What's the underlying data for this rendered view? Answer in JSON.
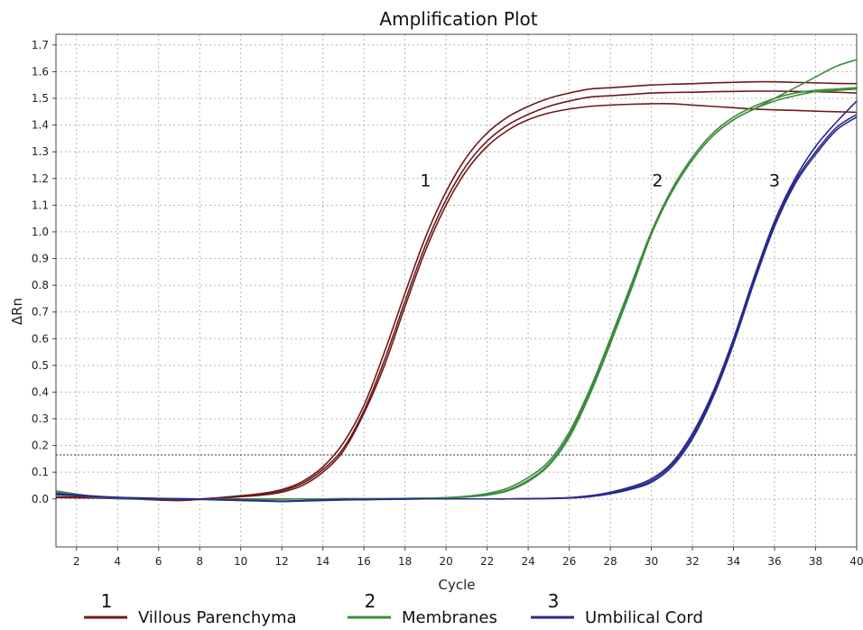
{
  "chart_data": {
    "type": "line",
    "title": "Amplification Plot",
    "xlabel": "Cycle",
    "ylabel": "ΔRn",
    "xlim": [
      1,
      40
    ],
    "ylim": [
      -0.18,
      1.74
    ],
    "x_ticks": [
      2,
      4,
      6,
      8,
      10,
      12,
      14,
      16,
      18,
      20,
      22,
      24,
      26,
      28,
      30,
      32,
      34,
      36,
      38,
      40
    ],
    "y_ticks": [
      0.0,
      0.1,
      0.2,
      0.3,
      0.4,
      0.5,
      0.6,
      0.7,
      0.8,
      0.9,
      1.0,
      1.1,
      1.2,
      1.3,
      1.4,
      1.5,
      1.6,
      1.7
    ],
    "y_tick_labels": [
      "0.0",
      "0.1",
      "0.2",
      "0.3",
      "0.4",
      "0.5",
      "0.6",
      "0.7",
      "0.8",
      "0.9",
      "1.0",
      "1.1",
      "1.2",
      "1.3",
      "1.4",
      "1.5",
      "1.6",
      "1.7"
    ],
    "grid": true,
    "threshold": 0.165,
    "legend_position": "bottom",
    "colors": {
      "villous": "#6e1a1a",
      "membranes": "#3c8c3c",
      "umbilical": "#2a2a8c",
      "threshold": "#333333",
      "grid": "#b5b5b5"
    },
    "series": [
      {
        "name": "Villous Parenchyma",
        "group": "1",
        "color": "#6e1a1a",
        "x": [
          1,
          2,
          3,
          4,
          5,
          6,
          7,
          8,
          9,
          10,
          11,
          12,
          13,
          14,
          15,
          16,
          17,
          18,
          19,
          20,
          21,
          22,
          23,
          24,
          25,
          26,
          27,
          28,
          29,
          30,
          31,
          32,
          33,
          34,
          35,
          36,
          37,
          38,
          39,
          40
        ],
        "y": [
          0.008,
          0.007,
          0.005,
          0.003,
          0.001,
          -0.002,
          -0.004,
          0.0,
          0.005,
          0.012,
          0.02,
          0.035,
          0.065,
          0.12,
          0.21,
          0.35,
          0.55,
          0.77,
          0.98,
          1.15,
          1.28,
          1.37,
          1.43,
          1.47,
          1.5,
          1.52,
          1.535,
          1.54,
          1.545,
          1.55,
          1.553,
          1.555,
          1.558,
          1.56,
          1.562,
          1.562,
          1.56,
          1.558,
          1.556,
          1.555
        ]
      },
      {
        "name": "Villous Parenchyma",
        "group": "1",
        "color": "#6e1a1a",
        "x": [
          1,
          2,
          3,
          4,
          5,
          6,
          7,
          8,
          9,
          10,
          11,
          12,
          13,
          14,
          15,
          16,
          17,
          18,
          19,
          20,
          21,
          22,
          23,
          24,
          25,
          26,
          27,
          28,
          29,
          30,
          31,
          32,
          33,
          34,
          35,
          36,
          37,
          38,
          39,
          40
        ],
        "y": [
          0.006,
          0.005,
          0.004,
          0.002,
          0.0,
          -0.003,
          -0.005,
          -0.001,
          0.004,
          0.01,
          0.017,
          0.03,
          0.058,
          0.11,
          0.19,
          0.33,
          0.52,
          0.74,
          0.95,
          1.12,
          1.25,
          1.34,
          1.4,
          1.44,
          1.47,
          1.49,
          1.505,
          1.51,
          1.515,
          1.52,
          1.522,
          1.523,
          1.525,
          1.526,
          1.527,
          1.527,
          1.526,
          1.525,
          1.523,
          1.52
        ]
      },
      {
        "name": "Villous Parenchyma",
        "group": "1",
        "color": "#6e1a1a",
        "x": [
          1,
          2,
          3,
          4,
          5,
          6,
          7,
          8,
          9,
          10,
          11,
          12,
          13,
          14,
          15,
          16,
          17,
          18,
          19,
          20,
          21,
          22,
          23,
          24,
          25,
          26,
          27,
          28,
          29,
          30,
          31,
          32,
          33,
          34,
          35,
          36,
          37,
          38,
          39,
          40
        ],
        "y": [
          0.005,
          0.004,
          0.003,
          0.001,
          -0.001,
          -0.004,
          -0.006,
          -0.002,
          0.003,
          0.008,
          0.014,
          0.025,
          0.05,
          0.1,
          0.18,
          0.32,
          0.5,
          0.72,
          0.93,
          1.1,
          1.23,
          1.32,
          1.38,
          1.42,
          1.445,
          1.46,
          1.47,
          1.475,
          1.478,
          1.48,
          1.48,
          1.475,
          1.47,
          1.465,
          1.46,
          1.457,
          1.455,
          1.452,
          1.45,
          1.448
        ]
      },
      {
        "name": "Membranes",
        "group": "2",
        "color": "#3c8c3c",
        "x": [
          1,
          2,
          3,
          4,
          5,
          6,
          7,
          8,
          9,
          10,
          11,
          12,
          13,
          14,
          15,
          16,
          17,
          18,
          19,
          20,
          21,
          22,
          23,
          24,
          25,
          26,
          27,
          28,
          29,
          30,
          31,
          32,
          33,
          34,
          35,
          36,
          37,
          38,
          39,
          40
        ],
        "y": [
          0.03,
          0.018,
          0.008,
          0.004,
          0.002,
          0.001,
          0.0,
          0.0,
          0.0,
          0.0,
          0.0,
          0.0,
          0.0,
          0.0,
          0.001,
          0.001,
          0.001,
          0.002,
          0.003,
          0.005,
          0.01,
          0.02,
          0.04,
          0.08,
          0.14,
          0.25,
          0.41,
          0.6,
          0.8,
          1.0,
          1.15,
          1.27,
          1.36,
          1.42,
          1.46,
          1.5,
          1.54,
          1.58,
          1.62,
          1.645
        ]
      },
      {
        "name": "Membranes",
        "group": "2",
        "color": "#3c8c3c",
        "x": [
          1,
          2,
          3,
          4,
          5,
          6,
          7,
          8,
          9,
          10,
          11,
          12,
          13,
          14,
          15,
          16,
          17,
          18,
          19,
          20,
          21,
          22,
          23,
          24,
          25,
          26,
          27,
          28,
          29,
          30,
          31,
          32,
          33,
          34,
          35,
          36,
          37,
          38,
          39,
          40
        ],
        "y": [
          0.025,
          0.015,
          0.007,
          0.003,
          0.001,
          0.0,
          0.0,
          0.0,
          0.0,
          0.0,
          0.0,
          0.0,
          0.0,
          -0.001,
          0.0,
          0.0,
          0.0,
          0.001,
          0.002,
          0.004,
          0.008,
          0.016,
          0.033,
          0.07,
          0.13,
          0.24,
          0.4,
          0.59,
          0.79,
          1.0,
          1.16,
          1.28,
          1.37,
          1.43,
          1.47,
          1.5,
          1.52,
          1.53,
          1.535,
          1.54
        ]
      },
      {
        "name": "Membranes",
        "group": "2",
        "color": "#3c8c3c",
        "x": [
          1,
          2,
          3,
          4,
          5,
          6,
          7,
          8,
          9,
          10,
          11,
          12,
          13,
          14,
          15,
          16,
          17,
          18,
          19,
          20,
          21,
          22,
          23,
          24,
          25,
          26,
          27,
          28,
          29,
          30,
          31,
          32,
          33,
          34,
          35,
          36,
          37,
          38,
          39,
          40
        ],
        "y": [
          0.022,
          0.013,
          0.006,
          0.002,
          0.0,
          0.0,
          -0.001,
          0.0,
          0.0,
          0.0,
          -0.001,
          -0.001,
          0.0,
          -0.001,
          0.0,
          0.0,
          0.0,
          0.001,
          0.002,
          0.003,
          0.007,
          0.014,
          0.03,
          0.065,
          0.125,
          0.23,
          0.39,
          0.58,
          0.78,
          0.99,
          1.15,
          1.27,
          1.36,
          1.42,
          1.46,
          1.49,
          1.51,
          1.525,
          1.53,
          1.535
        ]
      },
      {
        "name": "Umbilical Cord",
        "group": "3",
        "color": "#2a2a8c",
        "x": [
          1,
          2,
          3,
          4,
          5,
          6,
          7,
          8,
          9,
          10,
          11,
          12,
          13,
          14,
          15,
          16,
          17,
          18,
          19,
          20,
          21,
          22,
          23,
          24,
          25,
          26,
          27,
          28,
          29,
          30,
          31,
          32,
          33,
          34,
          35,
          36,
          37,
          38,
          39,
          40
        ],
        "y": [
          0.02,
          0.015,
          0.01,
          0.006,
          0.004,
          0.002,
          0.001,
          0.0,
          -0.002,
          -0.004,
          -0.006,
          -0.008,
          -0.006,
          -0.004,
          -0.002,
          -0.002,
          -0.001,
          0.0,
          0.0,
          0.0,
          0.0,
          0.0,
          0.0,
          0.001,
          0.002,
          0.005,
          0.012,
          0.025,
          0.045,
          0.075,
          0.135,
          0.245,
          0.4,
          0.6,
          0.83,
          1.04,
          1.2,
          1.32,
          1.41,
          1.49
        ]
      },
      {
        "name": "Umbilical Cord",
        "group": "3",
        "color": "#2a2a8c",
        "x": [
          1,
          2,
          3,
          4,
          5,
          6,
          7,
          8,
          9,
          10,
          11,
          12,
          13,
          14,
          15,
          16,
          17,
          18,
          19,
          20,
          21,
          22,
          23,
          24,
          25,
          26,
          27,
          28,
          29,
          30,
          31,
          32,
          33,
          34,
          35,
          36,
          37,
          38,
          39,
          40
        ],
        "y": [
          0.018,
          0.013,
          0.009,
          0.005,
          0.003,
          0.001,
          0.0,
          -0.001,
          -0.003,
          -0.005,
          -0.007,
          -0.009,
          -0.007,
          -0.005,
          -0.003,
          -0.002,
          -0.001,
          0.0,
          0.0,
          0.0,
          0.0,
          0.0,
          0.0,
          0.001,
          0.002,
          0.004,
          0.01,
          0.022,
          0.04,
          0.068,
          0.128,
          0.235,
          0.39,
          0.59,
          0.82,
          1.03,
          1.19,
          1.3,
          1.39,
          1.44
        ]
      },
      {
        "name": "Umbilical Cord",
        "group": "3",
        "color": "#2a2a8c",
        "x": [
          1,
          2,
          3,
          4,
          5,
          6,
          7,
          8,
          9,
          10,
          11,
          12,
          13,
          14,
          15,
          16,
          17,
          18,
          19,
          20,
          21,
          22,
          23,
          24,
          25,
          26,
          27,
          28,
          29,
          30,
          31,
          32,
          33,
          34,
          35,
          36,
          37,
          38,
          39,
          40
        ],
        "y": [
          0.016,
          0.012,
          0.008,
          0.004,
          0.002,
          0.0,
          -0.001,
          -0.002,
          -0.004,
          -0.006,
          -0.008,
          -0.01,
          -0.008,
          -0.006,
          -0.004,
          -0.003,
          -0.002,
          -0.001,
          0.0,
          0.0,
          0.0,
          0.0,
          0.0,
          0.0,
          0.001,
          0.003,
          0.008,
          0.019,
          0.036,
          0.062,
          0.12,
          0.225,
          0.38,
          0.58,
          0.81,
          1.02,
          1.18,
          1.29,
          1.38,
          1.43
        ]
      }
    ],
    "curve_labels": [
      {
        "text": "1",
        "x": 19.0,
        "y": 1.17
      },
      {
        "text": "2",
        "x": 30.3,
        "y": 1.17
      },
      {
        "text": "3",
        "x": 36.0,
        "y": 1.17
      }
    ],
    "legend": [
      {
        "number": "1",
        "label": "Villous Parenchyma",
        "color": "#6e1a1a"
      },
      {
        "number": "2",
        "label": "Membranes",
        "color": "#3c8c3c"
      },
      {
        "number": "3",
        "label": "Umbilical Cord",
        "color": "#2a2a8c"
      }
    ]
  }
}
